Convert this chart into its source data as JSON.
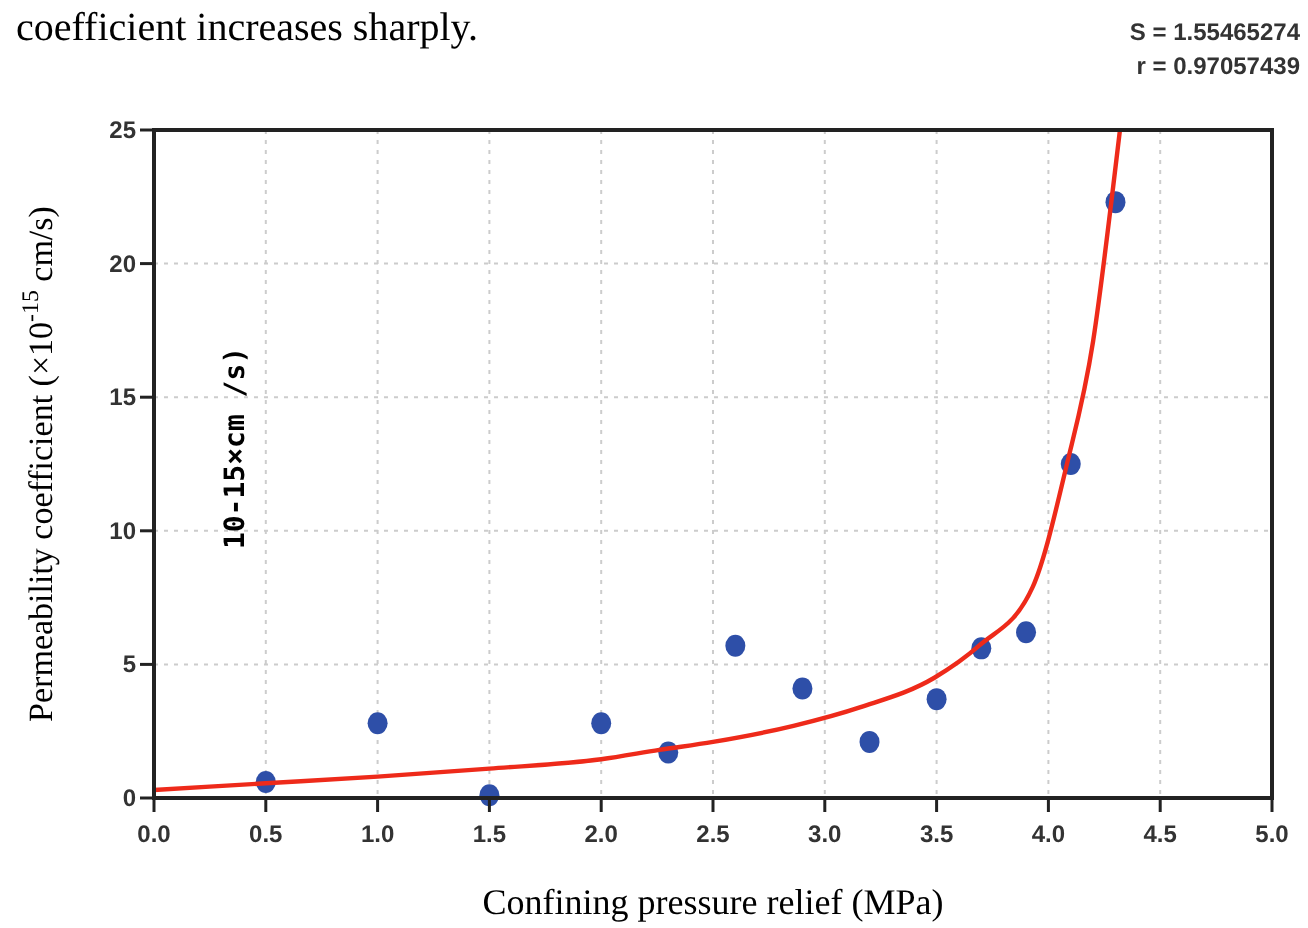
{
  "chart_data": {
    "type": "scatter",
    "xlabel": "Confining pressure relief (MPa)",
    "ylabel": "Permeability coefficient (×10$^{-15}$ cm/s)",
    "annotations": [
      "coefficient increases sharply.",
      "S = 1.55465274",
      "r = 0.97057439",
      "10-15×cm /s)"
    ],
    "xlim": [
      0,
      5
    ],
    "xticks": [
      {
        "value": 0,
        "label": "0.0"
      },
      {
        "value": 0.5,
        "label": "0.5"
      },
      {
        "value": 1,
        "label": "1.0"
      },
      {
        "value": 1.5,
        "label": "1.5"
      },
      {
        "value": 2,
        "label": "2.0"
      },
      {
        "value": 2.5,
        "label": "2.5"
      },
      {
        "value": 3,
        "label": "3.0"
      },
      {
        "value": 3.5,
        "label": "3.5"
      },
      {
        "value": 4,
        "label": "4.0"
      },
      {
        "value": 4.5,
        "label": "4.5"
      },
      {
        "value": 5,
        "label": "5.0"
      }
    ],
    "ylim": [
      0,
      25
    ],
    "yticks": [
      0,
      5,
      10,
      15,
      20,
      25
    ],
    "grid": true,
    "series": [
      {
        "color": "#2e4fa8",
        "marker": "circle",
        "x": [
          0.5,
          1.0,
          1.5,
          2.0,
          2.3,
          2.6,
          2.9,
          3.2,
          3.5,
          3.7,
          3.9,
          4.1,
          4.3
        ],
        "values": [
          0.6,
          2.8,
          0.1,
          2.8,
          1.7,
          5.7,
          4.1,
          2.1,
          3.7,
          5.6,
          6.2,
          12.5,
          22.3
        ]
      },
      {
        "type": "line",
        "color": "#ee2a1a",
        "line_style": "solid",
        "x": [
          0,
          0.5,
          1,
          1.5,
          2,
          2.26,
          2.5,
          2.86,
          3.16,
          3.49,
          3.69,
          3.93,
          4.08,
          4.2,
          4.29,
          4.32
        ],
        "values": [
          0.3,
          0.55,
          0.8,
          1.1,
          1.45,
          1.8,
          2.1,
          2.7,
          3.4,
          4.5,
          5.7,
          7.9,
          12.4,
          17.1,
          22.9,
          25
        ]
      }
    ]
  }
}
